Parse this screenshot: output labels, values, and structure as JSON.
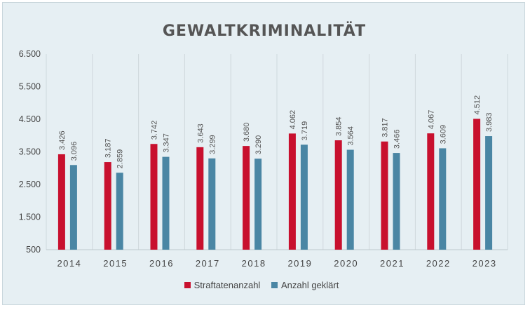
{
  "chart_data": {
    "type": "bar",
    "title": "GEWALTKRIMINALITÄT",
    "categories": [
      "2014",
      "2015",
      "2016",
      "2017",
      "2018",
      "2019",
      "2020",
      "2021",
      "2022",
      "2023"
    ],
    "series": [
      {
        "name": "Straftatenanzahl",
        "color": "#c8102e",
        "values": [
          3426,
          3187,
          3742,
          3643,
          3680,
          4062,
          3854,
          3817,
          4067,
          4512
        ],
        "labels": [
          "3.426",
          "3.187",
          "3.742",
          "3.643",
          "3.680",
          "4.062",
          "3.854",
          "3.817",
          "4.067",
          "4.512"
        ]
      },
      {
        "name": "Anzahl geklärt",
        "color": "#4a86a4",
        "values": [
          3096,
          2859,
          3347,
          3299,
          3290,
          3719,
          3564,
          3466,
          3609,
          3983
        ],
        "labels": [
          "3.096",
          "2.859",
          "3.347",
          "3.299",
          "3.290",
          "3.719",
          "3.564",
          "3.466",
          "3.609",
          "3.983"
        ]
      }
    ],
    "ylim": [
      500,
      6500
    ],
    "yticks": [
      500,
      1500,
      2500,
      3500,
      4500,
      5500,
      6500
    ],
    "ytick_labels": [
      "500",
      "1.500",
      "2.500",
      "3.500",
      "4.500",
      "5.500",
      "6.500"
    ],
    "grid": "vertical-category-separators",
    "legend": "bottom-center"
  }
}
